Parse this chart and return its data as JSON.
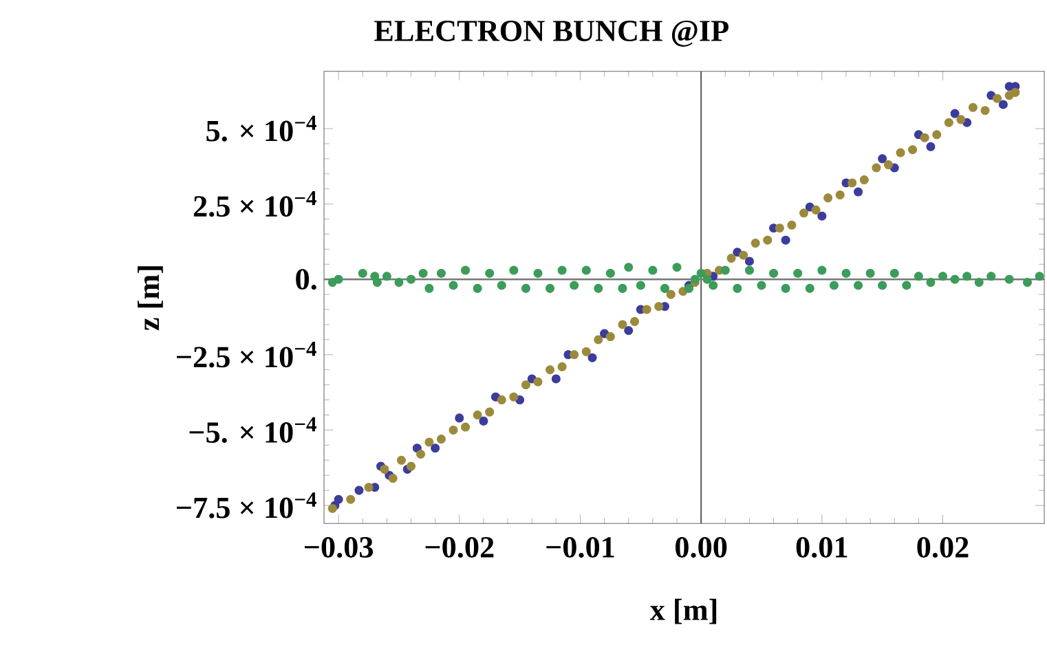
{
  "chart_data": {
    "type": "scatter",
    "title": "ELECTRON BUNCH @IP",
    "xlabel": "x [m]",
    "ylabel": "z [m]",
    "xlim": [
      -0.0312,
      0.0284
    ],
    "ylim": [
      -0.00081,
      0.00069
    ],
    "xticks": [
      {
        "value": -0.03,
        "label": "−0.03"
      },
      {
        "value": -0.02,
        "label": "−0.02"
      },
      {
        "value": -0.01,
        "label": "−0.01"
      },
      {
        "value": 0,
        "label": "0.00"
      },
      {
        "value": 0.01,
        "label": "0.01"
      },
      {
        "value": 0.02,
        "label": "0.02"
      }
    ],
    "yticks": [
      {
        "value": -0.00075,
        "label": "−7.5 × 10$^{−4}$"
      },
      {
        "value": -0.0005,
        "label": "−5. × 10$^{−4}$"
      },
      {
        "value": -0.00025,
        "label": "−2.5 × 10$^{−4}$"
      },
      {
        "value": 0,
        "label": "0."
      },
      {
        "value": 0.00025,
        "label": "2.5 × 10$^{−4}$"
      },
      {
        "value": 0.0005,
        "label": "5. × 10$^{−4}$"
      }
    ],
    "grid": false,
    "marker": "circle",
    "ref_lines": [
      {
        "axis": "x",
        "value": 0,
        "color": "#333333"
      },
      {
        "axis": "y",
        "value": 0,
        "color": "#777777"
      }
    ],
    "series": [
      {
        "color": "#3c3c9c",
        "x": [
          -0.0303,
          -0.03,
          -0.0283,
          -0.027,
          -0.0265,
          -0.0258,
          -0.0243,
          -0.0235,
          -0.022,
          -0.02,
          -0.018,
          -0.017,
          -0.015,
          -0.014,
          -0.012,
          -0.011,
          -0.009,
          -0.008,
          -0.006,
          -0.005,
          -0.003,
          -0.001,
          0.001,
          0.003,
          0.004,
          0.006,
          0.007,
          0.009,
          0.01,
          0.012,
          0.013,
          0.015,
          0.016,
          0.018,
          0.019,
          0.021,
          0.022,
          0.024,
          0.025,
          0.0255,
          0.026
        ],
        "values": [
          -0.00075,
          -0.00073,
          -0.0007,
          -0.00069,
          -0.00062,
          -0.00065,
          -0.00063,
          -0.00056,
          -0.00056,
          -0.00046,
          -0.00047,
          -0.00039,
          -0.0004,
          -0.00033,
          -0.00033,
          -0.00025,
          -0.00026,
          -0.00018,
          -0.00017,
          -0.0001,
          -9e-05,
          -2e-05,
          1e-05,
          9e-05,
          6e-05,
          0.00017,
          0.00013,
          0.00024,
          0.00021,
          0.00032,
          0.00029,
          0.0004,
          0.00037,
          0.00048,
          0.00044,
          0.00055,
          0.00052,
          0.00061,
          0.00058,
          0.00064,
          0.00064
        ]
      },
      {
        "color": "#9c8a3c",
        "x": [
          -0.0305,
          -0.029,
          -0.0275,
          -0.0262,
          -0.0255,
          -0.0248,
          -0.024,
          -0.0232,
          -0.0225,
          -0.0215,
          -0.0205,
          -0.0195,
          -0.0185,
          -0.0175,
          -0.0165,
          -0.0155,
          -0.0145,
          -0.0135,
          -0.0125,
          -0.0115,
          -0.0105,
          -0.0095,
          -0.0085,
          -0.0075,
          -0.0065,
          -0.0055,
          -0.0045,
          -0.0035,
          -0.0025,
          -0.0015,
          -0.0005,
          0.0005,
          0.0015,
          0.0025,
          0.0035,
          0.0045,
          0.0055,
          0.0065,
          0.0075,
          0.0085,
          0.0095,
          0.0105,
          0.0115,
          0.0125,
          0.0135,
          0.0145,
          0.0155,
          0.0165,
          0.0175,
          0.0185,
          0.0195,
          0.0205,
          0.0215,
          0.0225,
          0.0235,
          0.0245,
          0.0255,
          0.026
        ],
        "values": [
          -0.00076,
          -0.00073,
          -0.00069,
          -0.00063,
          -0.00066,
          -0.0006,
          -0.00062,
          -0.00058,
          -0.00054,
          -0.00053,
          -0.0005,
          -0.00049,
          -0.00045,
          -0.00044,
          -0.0004,
          -0.00039,
          -0.00035,
          -0.00034,
          -0.0003,
          -0.00029,
          -0.00025,
          -0.00024,
          -0.0002,
          -0.00019,
          -0.00015,
          -0.00014,
          -0.0001,
          -9e-05,
          -5e-05,
          -4e-05,
          -1e-05,
          2e-05,
          3e-05,
          7e-05,
          8e-05,
          0.00012,
          0.00013,
          0.00017,
          0.00018,
          0.00022,
          0.00023,
          0.00027,
          0.00028,
          0.00032,
          0.00033,
          0.00037,
          0.00038,
          0.00042,
          0.00043,
          0.00047,
          0.00048,
          0.00052,
          0.00053,
          0.00057,
          0.00056,
          0.0006,
          0.00061,
          0.00062
        ]
      },
      {
        "color": "#3c9c5a",
        "x": [
          -0.0305,
          -0.03,
          -0.028,
          -0.027,
          -0.0268,
          -0.026,
          -0.025,
          -0.024,
          -0.023,
          -0.0225,
          -0.0215,
          -0.0205,
          -0.0195,
          -0.0185,
          -0.0175,
          -0.0165,
          -0.0155,
          -0.0145,
          -0.0135,
          -0.0125,
          -0.0115,
          -0.0105,
          -0.0095,
          -0.0085,
          -0.0075,
          -0.0065,
          -0.006,
          -0.005,
          -0.004,
          -0.003,
          -0.002,
          -0.001,
          -0.0005,
          0,
          0.0005,
          0.001,
          0.002,
          0.003,
          0.004,
          0.005,
          0.006,
          0.007,
          0.008,
          0.009,
          0.01,
          0.011,
          0.012,
          0.013,
          0.014,
          0.015,
          0.016,
          0.017,
          0.018,
          0.019,
          0.02,
          0.021,
          0.022,
          0.023,
          0.024,
          0.0255,
          0.027,
          0.028
        ],
        "values": [
          -1e-05,
          0,
          2e-05,
          1e-05,
          -1e-05,
          1e-05,
          -1e-05,
          0,
          2e-05,
          -3e-05,
          2e-05,
          -2e-05,
          3e-05,
          -3e-05,
          2e-05,
          -2e-05,
          3e-05,
          -3e-05,
          2e-05,
          -3e-05,
          3e-05,
          -2e-05,
          3e-05,
          -3e-05,
          2e-05,
          -3e-05,
          4e-05,
          -2e-05,
          3e-05,
          -3e-05,
          4e-05,
          -3e-05,
          0,
          2e-05,
          0,
          -2e-05,
          3e-05,
          -3e-05,
          3e-05,
          -2e-05,
          2e-05,
          -3e-05,
          2e-05,
          -3e-05,
          3e-05,
          -2e-05,
          2e-05,
          -2e-05,
          2e-05,
          -2e-05,
          2e-05,
          -2e-05,
          1e-05,
          -1e-05,
          1e-05,
          0,
          1e-05,
          -1e-05,
          1e-05,
          0,
          -1e-05,
          1e-05
        ]
      }
    ]
  }
}
